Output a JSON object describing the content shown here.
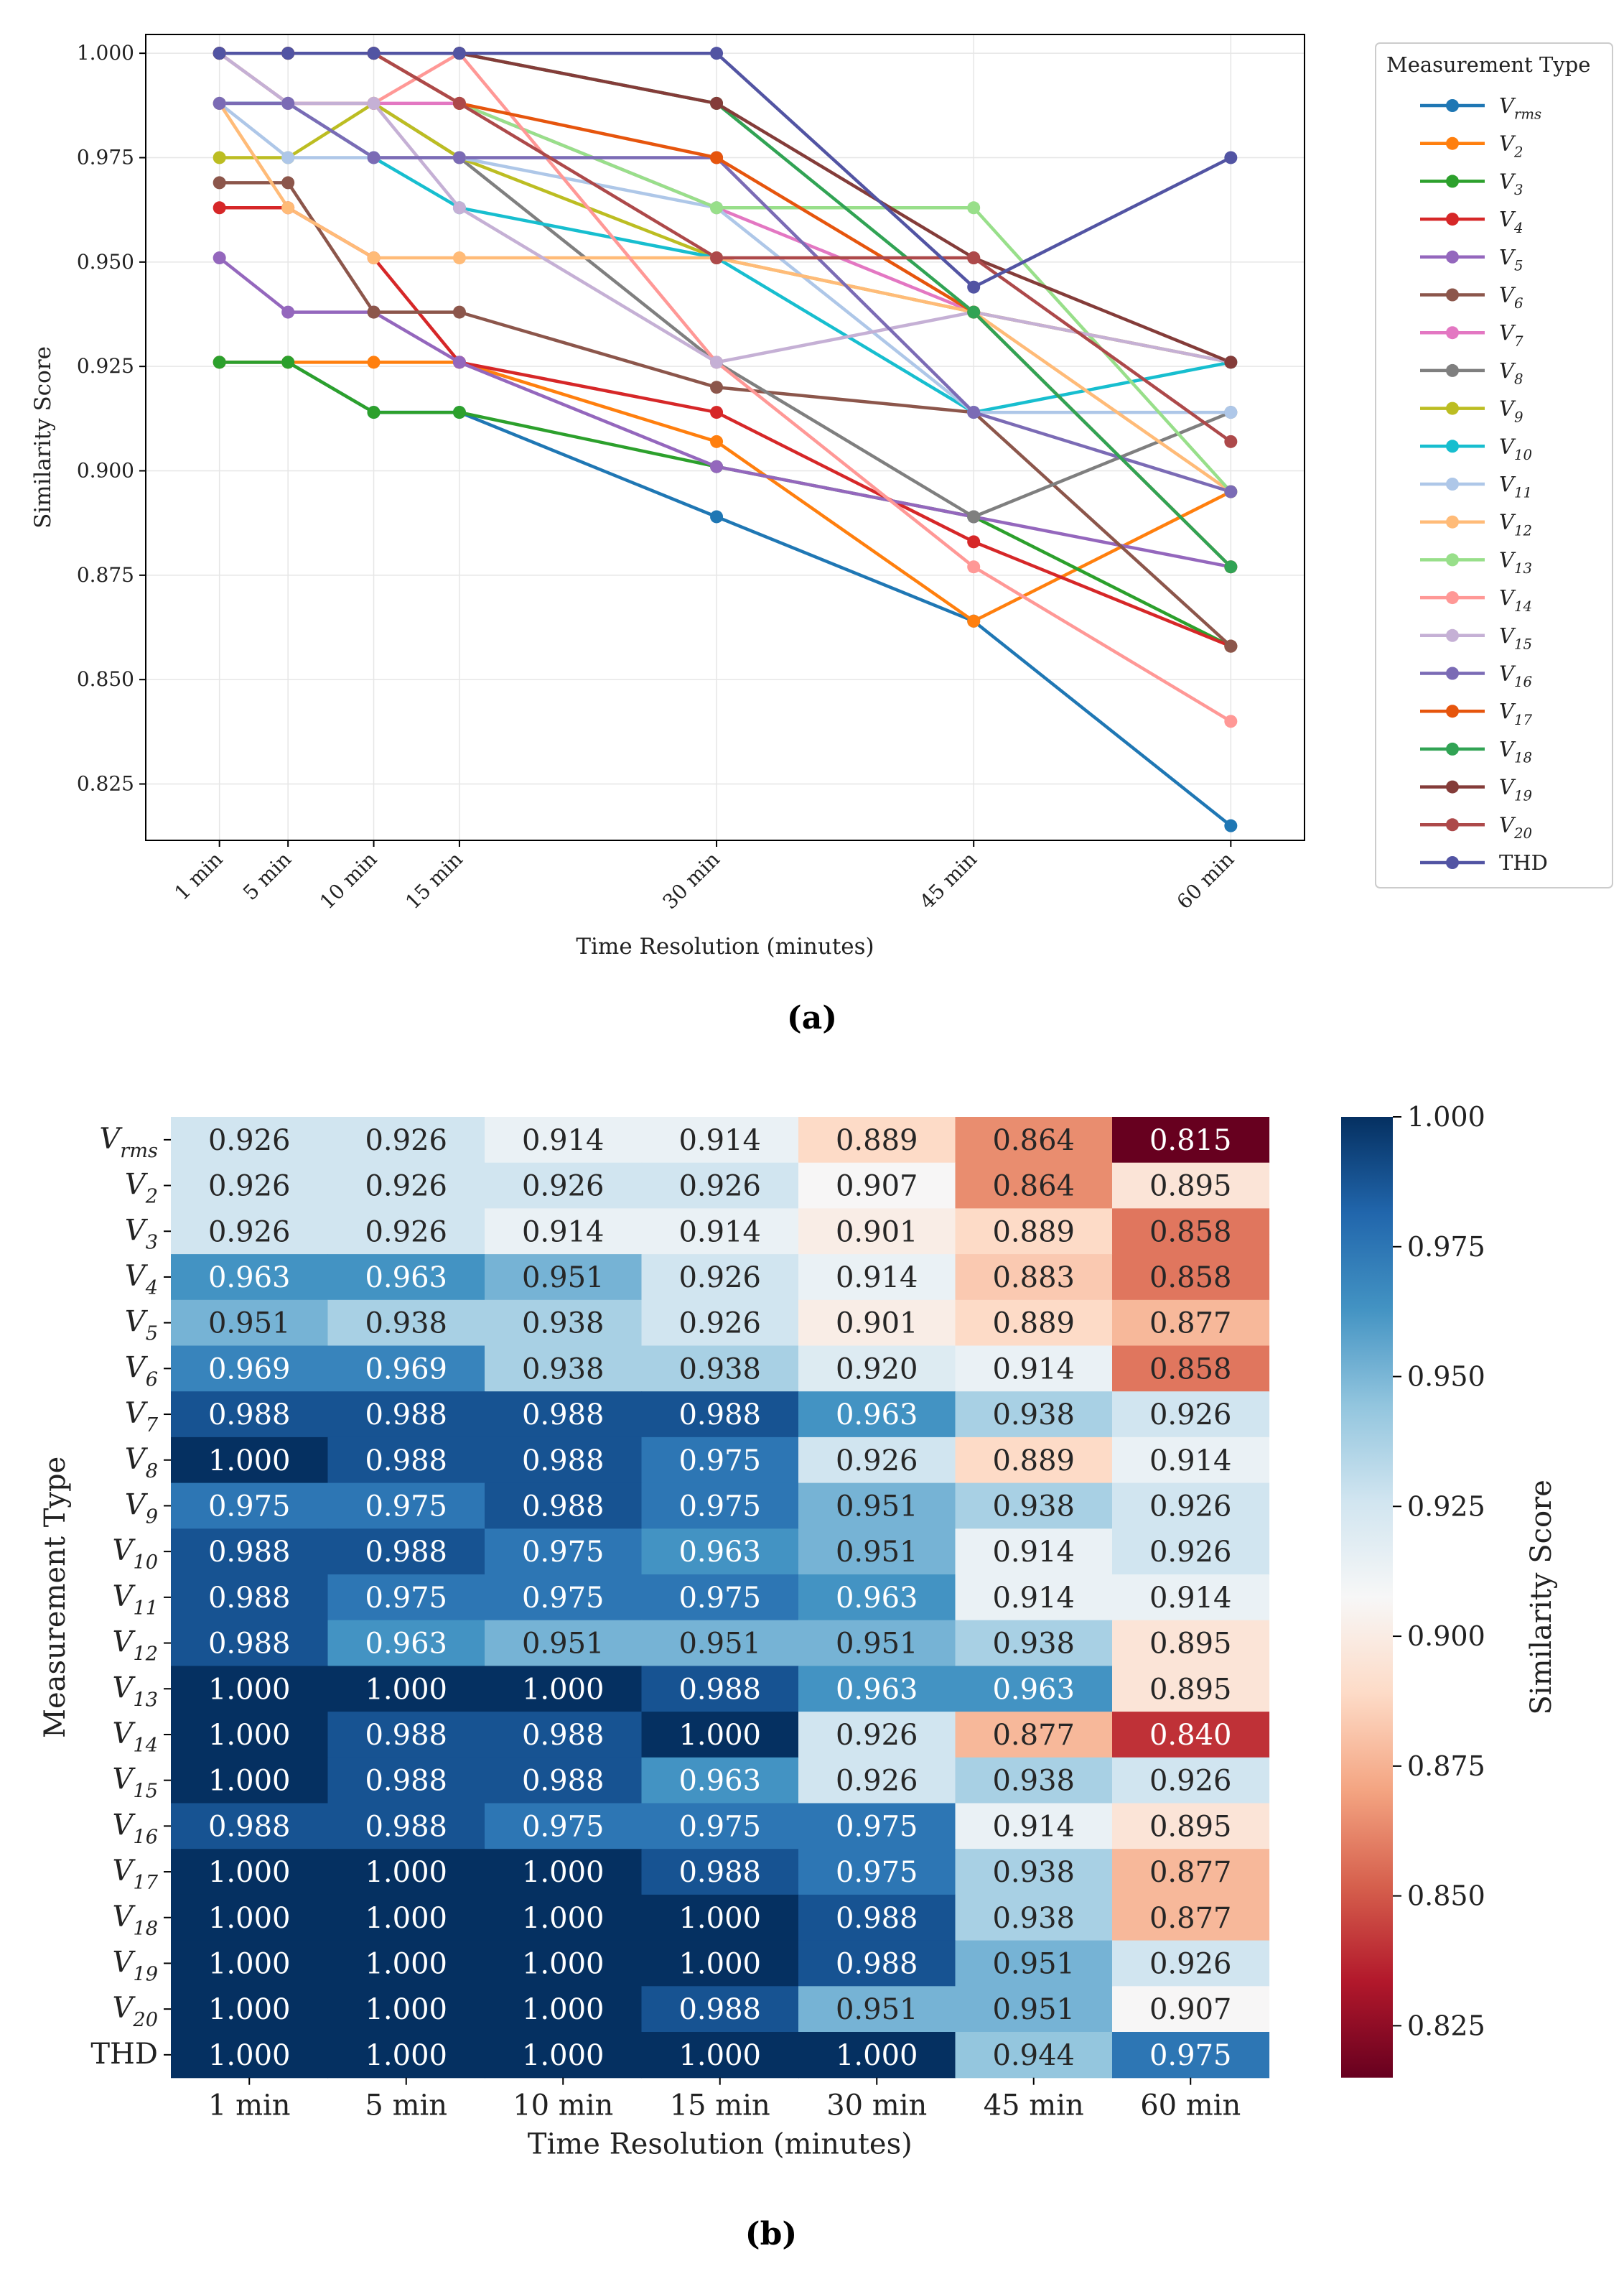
{
  "chart_data": [
    {
      "type": "line",
      "panel_label": "(a)",
      "xlabel": "Time Resolution (minutes)",
      "ylabel": "Similarity Score",
      "x_values": [
        1,
        5,
        10,
        15,
        30,
        45,
        60
      ],
      "x_tick_labels": [
        "1 min",
        "5 min",
        "10 min",
        "15 min",
        "30 min",
        "45 min",
        "60 min"
      ],
      "ylim": [
        0.8115,
        1.0045
      ],
      "y_ticks": [
        0.825,
        0.85,
        0.875,
        0.9,
        0.925,
        0.95,
        0.975,
        1.0
      ],
      "y_tick_labels": [
        "0.825",
        "0.850",
        "0.875",
        "0.900",
        "0.925",
        "0.950",
        "0.975",
        "1.000"
      ],
      "grid": true,
      "legend_title": "Measurement Type",
      "legend_position": "outside right",
      "series": [
        {
          "name": "V_rms",
          "base": "V",
          "subscript": "rms",
          "color": "#1f77b4",
          "values": [
            0.926,
            0.926,
            0.914,
            0.914,
            0.889,
            0.864,
            0.815
          ]
        },
        {
          "name": "V_2",
          "base": "V",
          "subscript": "2",
          "color": "#ff7f0e",
          "values": [
            0.926,
            0.926,
            0.926,
            0.926,
            0.907,
            0.864,
            0.895
          ]
        },
        {
          "name": "V_3",
          "base": "V",
          "subscript": "3",
          "color": "#2ca02c",
          "values": [
            0.926,
            0.926,
            0.914,
            0.914,
            0.901,
            0.889,
            0.858
          ]
        },
        {
          "name": "V_4",
          "base": "V",
          "subscript": "4",
          "color": "#d62728",
          "values": [
            0.963,
            0.963,
            0.951,
            0.926,
            0.914,
            0.883,
            0.858
          ]
        },
        {
          "name": "V_5",
          "base": "V",
          "subscript": "5",
          "color": "#9467bd",
          "values": [
            0.951,
            0.938,
            0.938,
            0.926,
            0.901,
            0.889,
            0.877
          ]
        },
        {
          "name": "V_6",
          "base": "V",
          "subscript": "6",
          "color": "#8c564b",
          "values": [
            0.969,
            0.969,
            0.938,
            0.938,
            0.92,
            0.914,
            0.858
          ]
        },
        {
          "name": "V_7",
          "base": "V",
          "subscript": "7",
          "color": "#e377c2",
          "values": [
            0.988,
            0.988,
            0.988,
            0.988,
            0.963,
            0.938,
            0.926
          ]
        },
        {
          "name": "V_8",
          "base": "V",
          "subscript": "8",
          "color": "#7f7f7f",
          "values": [
            1.0,
            0.988,
            0.988,
            0.975,
            0.926,
            0.889,
            0.914
          ]
        },
        {
          "name": "V_9",
          "base": "V",
          "subscript": "9",
          "color": "#bcbd22",
          "values": [
            0.975,
            0.975,
            0.988,
            0.975,
            0.951,
            0.938,
            0.926
          ]
        },
        {
          "name": "V_10",
          "base": "V",
          "subscript": "10",
          "color": "#17becf",
          "values": [
            0.988,
            0.988,
            0.975,
            0.963,
            0.951,
            0.914,
            0.926
          ]
        },
        {
          "name": "V_11",
          "base": "V",
          "subscript": "11",
          "color": "#aec7e8",
          "values": [
            0.988,
            0.975,
            0.975,
            0.975,
            0.963,
            0.914,
            0.914
          ]
        },
        {
          "name": "V_12",
          "base": "V",
          "subscript": "12",
          "color": "#ffbb78",
          "values": [
            0.988,
            0.963,
            0.951,
            0.951,
            0.951,
            0.938,
            0.895
          ]
        },
        {
          "name": "V_13",
          "base": "V",
          "subscript": "13",
          "color": "#98df8a",
          "values": [
            1.0,
            1.0,
            1.0,
            0.988,
            0.963,
            0.963,
            0.895
          ]
        },
        {
          "name": "V_14",
          "base": "V",
          "subscript": "14",
          "color": "#ff9896",
          "values": [
            1.0,
            0.988,
            0.988,
            1.0,
            0.926,
            0.877,
            0.84
          ]
        },
        {
          "name": "V_15",
          "base": "V",
          "subscript": "15",
          "color": "#c5b0d5",
          "values": [
            1.0,
            0.988,
            0.988,
            0.963,
            0.926,
            0.938,
            0.926
          ]
        },
        {
          "name": "V_16",
          "base": "V",
          "subscript": "16",
          "color": "#7b6bb5",
          "values": [
            0.988,
            0.988,
            0.975,
            0.975,
            0.975,
            0.914,
            0.895
          ]
        },
        {
          "name": "V_17",
          "base": "V",
          "subscript": "17",
          "color": "#e6550d",
          "values": [
            1.0,
            1.0,
            1.0,
            0.988,
            0.975,
            0.938,
            0.877
          ]
        },
        {
          "name": "V_18",
          "base": "V",
          "subscript": "18",
          "color": "#31a354",
          "values": [
            1.0,
            1.0,
            1.0,
            1.0,
            0.988,
            0.938,
            0.877
          ]
        },
        {
          "name": "V_19",
          "base": "V",
          "subscript": "19",
          "color": "#843c39",
          "values": [
            1.0,
            1.0,
            1.0,
            1.0,
            0.988,
            0.951,
            0.926
          ]
        },
        {
          "name": "V_20",
          "base": "V",
          "subscript": "20",
          "color": "#ad494a",
          "values": [
            1.0,
            1.0,
            1.0,
            0.988,
            0.951,
            0.951,
            0.907
          ]
        },
        {
          "name": "THD",
          "base": "THD",
          "subscript": "",
          "color": "#5254a3",
          "values": [
            1.0,
            1.0,
            1.0,
            1.0,
            1.0,
            0.944,
            0.975
          ]
        }
      ]
    },
    {
      "type": "heatmap",
      "panel_label": "(b)",
      "xlabel": "Time Resolution (minutes)",
      "ylabel": "Measurement Type",
      "colorbar_label": "Similarity Score",
      "colormap": "RdBu",
      "vmin": 0.815,
      "vmax": 1.0,
      "colorbar_ticks": [
        0.825,
        0.85,
        0.875,
        0.9,
        0.925,
        0.95,
        0.975,
        1.0
      ],
      "colorbar_tick_labels": [
        "0.825",
        "0.850",
        "0.875",
        "0.900",
        "0.925",
        "0.950",
        "0.975",
        "1.000"
      ],
      "columns": [
        "1 min",
        "5 min",
        "10 min",
        "15 min",
        "30 min",
        "45 min",
        "60 min"
      ],
      "rows": [
        {
          "label": "V_rms",
          "base": "V",
          "subscript": "rms",
          "values": [
            "0.926",
            "0.926",
            "0.914",
            "0.914",
            "0.889",
            "0.864",
            "0.815"
          ]
        },
        {
          "label": "V_2",
          "base": "V",
          "subscript": "2",
          "values": [
            "0.926",
            "0.926",
            "0.926",
            "0.926",
            "0.907",
            "0.864",
            "0.895"
          ]
        },
        {
          "label": "V_3",
          "base": "V",
          "subscript": "3",
          "values": [
            "0.926",
            "0.926",
            "0.914",
            "0.914",
            "0.901",
            "0.889",
            "0.858"
          ]
        },
        {
          "label": "V_4",
          "base": "V",
          "subscript": "4",
          "values": [
            "0.963",
            "0.963",
            "0.951",
            "0.926",
            "0.914",
            "0.883",
            "0.858"
          ]
        },
        {
          "label": "V_5",
          "base": "V",
          "subscript": "5",
          "values": [
            "0.951",
            "0.938",
            "0.938",
            "0.926",
            "0.901",
            "0.889",
            "0.877"
          ]
        },
        {
          "label": "V_6",
          "base": "V",
          "subscript": "6",
          "values": [
            "0.969",
            "0.969",
            "0.938",
            "0.938",
            "0.920",
            "0.914",
            "0.858"
          ]
        },
        {
          "label": "V_7",
          "base": "V",
          "subscript": "7",
          "values": [
            "0.988",
            "0.988",
            "0.988",
            "0.988",
            "0.963",
            "0.938",
            "0.926"
          ]
        },
        {
          "label": "V_8",
          "base": "V",
          "subscript": "8",
          "values": [
            "1.000",
            "0.988",
            "0.988",
            "0.975",
            "0.926",
            "0.889",
            "0.914"
          ]
        },
        {
          "label": "V_9",
          "base": "V",
          "subscript": "9",
          "values": [
            "0.975",
            "0.975",
            "0.988",
            "0.975",
            "0.951",
            "0.938",
            "0.926"
          ]
        },
        {
          "label": "V_10",
          "base": "V",
          "subscript": "10",
          "values": [
            "0.988",
            "0.988",
            "0.975",
            "0.963",
            "0.951",
            "0.914",
            "0.926"
          ]
        },
        {
          "label": "V_11",
          "base": "V",
          "subscript": "11",
          "values": [
            "0.988",
            "0.975",
            "0.975",
            "0.975",
            "0.963",
            "0.914",
            "0.914"
          ]
        },
        {
          "label": "V_12",
          "base": "V",
          "subscript": "12",
          "values": [
            "0.988",
            "0.963",
            "0.951",
            "0.951",
            "0.951",
            "0.938",
            "0.895"
          ]
        },
        {
          "label": "V_13",
          "base": "V",
          "subscript": "13",
          "values": [
            "1.000",
            "1.000",
            "1.000",
            "0.988",
            "0.963",
            "0.963",
            "0.895"
          ]
        },
        {
          "label": "V_14",
          "base": "V",
          "subscript": "14",
          "values": [
            "1.000",
            "0.988",
            "0.988",
            "1.000",
            "0.926",
            "0.877",
            "0.840"
          ]
        },
        {
          "label": "V_15",
          "base": "V",
          "subscript": "15",
          "values": [
            "1.000",
            "0.988",
            "0.988",
            "0.963",
            "0.926",
            "0.938",
            "0.926"
          ]
        },
        {
          "label": "V_16",
          "base": "V",
          "subscript": "16",
          "values": [
            "0.988",
            "0.988",
            "0.975",
            "0.975",
            "0.975",
            "0.914",
            "0.895"
          ]
        },
        {
          "label": "V_17",
          "base": "V",
          "subscript": "17",
          "values": [
            "1.000",
            "1.000",
            "1.000",
            "0.988",
            "0.975",
            "0.938",
            "0.877"
          ]
        },
        {
          "label": "V_18",
          "base": "V",
          "subscript": "18",
          "values": [
            "1.000",
            "1.000",
            "1.000",
            "1.000",
            "0.988",
            "0.938",
            "0.877"
          ]
        },
        {
          "label": "V_19",
          "base": "V",
          "subscript": "19",
          "values": [
            "1.000",
            "1.000",
            "1.000",
            "1.000",
            "0.988",
            "0.951",
            "0.926"
          ]
        },
        {
          "label": "V_20",
          "base": "V",
          "subscript": "20",
          "values": [
            "1.000",
            "1.000",
            "1.000",
            "0.988",
            "0.951",
            "0.951",
            "0.907"
          ]
        },
        {
          "label": "THD",
          "base": "THD",
          "subscript": "",
          "values": [
            "1.000",
            "1.000",
            "1.000",
            "1.000",
            "1.000",
            "0.944",
            "0.975"
          ]
        }
      ]
    }
  ]
}
